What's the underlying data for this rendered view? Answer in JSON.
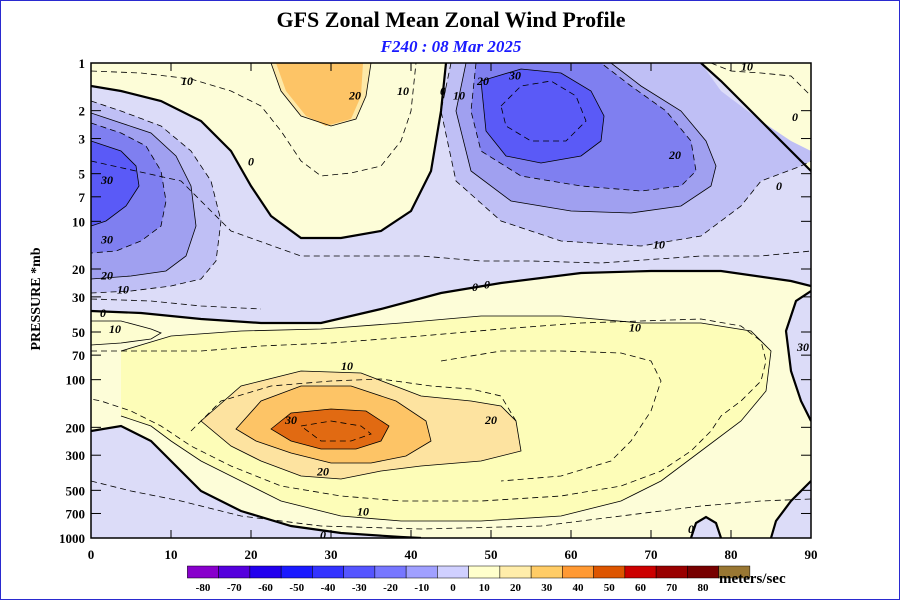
{
  "title": "GFS Zonal Mean Zonal Wind Profile",
  "subtitle": "F240 : 08 Mar 2025",
  "units": "meters/sec",
  "chart_data": {
    "type": "heatmap",
    "title": "GFS Zonal Mean Zonal Wind Profile",
    "subtitle": "F240 : 08 Mar 2025",
    "xlabel": "",
    "ylabel": "PRESSURE *mb",
    "xlim": [
      0,
      90
    ],
    "ylim": [
      1000,
      1
    ],
    "y_scale": "log",
    "x_ticks": [
      "0",
      "10",
      "20",
      "30",
      "40",
      "50",
      "60",
      "70",
      "80",
      "90"
    ],
    "y_ticks": [
      "1",
      "2",
      "3",
      "5",
      "7",
      "10",
      "20",
      "30",
      "50",
      "70",
      "100",
      "200",
      "300",
      "500",
      "700",
      "1000"
    ],
    "colorbar": {
      "levels": [
        "-80",
        "-70",
        "-60",
        "-50",
        "-40",
        "-30",
        "-20",
        "-10",
        "0",
        "10",
        "20",
        "30",
        "40",
        "50",
        "60",
        "70",
        "80"
      ],
      "colors": [
        "#8800cc",
        "#5500dd",
        "#2200ee",
        "#1a1aff",
        "#3333ff",
        "#5555ff",
        "#7777ff",
        "#a0a0ff",
        "#d0d0ff",
        "#ffffcc",
        "#ffedaa",
        "#ffcc66",
        "#ff9933",
        "#dd5500",
        "#cc0000",
        "#990000",
        "#770000",
        "#997733"
      ],
      "units": "meters/sec"
    },
    "contour_labels": [
      {
        "text": "10",
        "x": 12,
        "p": 1.3
      },
      {
        "text": "20",
        "x": 33,
        "p": 1.6
      },
      {
        "text": "10",
        "x": 39,
        "p": 1.5
      },
      {
        "text": "0",
        "x": 44,
        "p": 1.5
      },
      {
        "text": "10",
        "x": 46,
        "p": 1.6
      },
      {
        "text": "20",
        "x": 49,
        "p": 1.3
      },
      {
        "text": "30",
        "x": 53,
        "p": 1.2
      },
      {
        "text": "10",
        "x": 82,
        "p": 1.05
      },
      {
        "text": "0",
        "x": 88,
        "p": 2.2
      },
      {
        "text": "0",
        "x": 20,
        "p": 4.2
      },
      {
        "text": "20",
        "x": 73,
        "p": 3.8
      },
      {
        "text": "0",
        "x": 86,
        "p": 6.0
      },
      {
        "text": "30",
        "x": 2,
        "p": 5.5
      },
      {
        "text": "30",
        "x": 2,
        "p": 13
      },
      {
        "text": "10",
        "x": 71,
        "p": 14
      },
      {
        "text": "20",
        "x": 2,
        "p": 22
      },
      {
        "text": "10",
        "x": 4,
        "p": 27
      },
      {
        "text": "0",
        "x": 1.5,
        "p": 38
      },
      {
        "text": "0",
        "x": 48,
        "p": 26
      },
      {
        "text": "0",
        "x": 49.5,
        "p": 25
      },
      {
        "text": "10",
        "x": 3,
        "p": 48
      },
      {
        "text": "10",
        "x": 32,
        "p": 82
      },
      {
        "text": "10",
        "x": 68,
        "p": 47
      },
      {
        "text": "30",
        "x": 89,
        "p": 62
      },
      {
        "text": "30",
        "x": 25,
        "p": 180
      },
      {
        "text": "20",
        "x": 50,
        "p": 180
      },
      {
        "text": "20",
        "x": 29,
        "p": 380
      },
      {
        "text": "10",
        "x": 34,
        "p": 680
      },
      {
        "text": "0",
        "x": 29,
        "p": 960
      },
      {
        "text": "0",
        "x": 75,
        "p": 880
      }
    ]
  }
}
